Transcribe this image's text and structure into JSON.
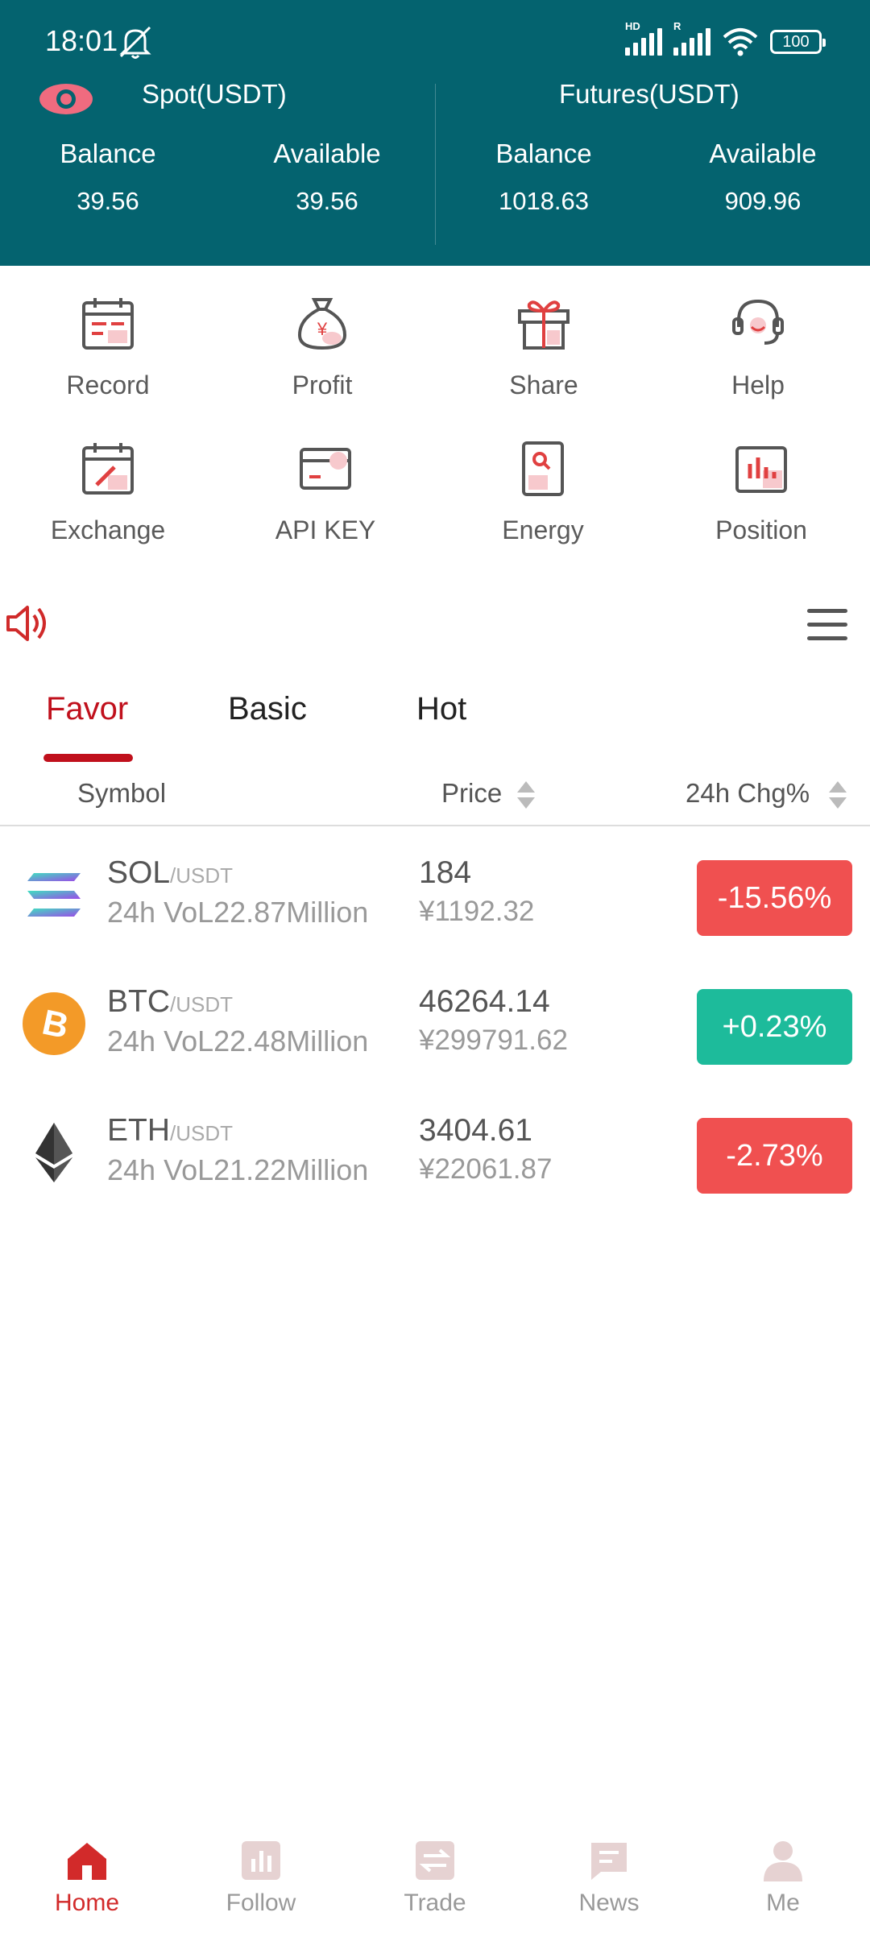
{
  "status_bar": {
    "time": "18:01",
    "hd_tag": "HD",
    "r_tag": "R",
    "battery": "100"
  },
  "accounts": {
    "spot": {
      "title": "Spot(USDT)",
      "balance_label": "Balance",
      "balance": "39.56",
      "available_label": "Available",
      "available": "39.56"
    },
    "futures": {
      "title": "Futures(USDT)",
      "balance_label": "Balance",
      "balance": "1018.63",
      "available_label": "Available",
      "available": "909.96"
    }
  },
  "menu": [
    {
      "label": "Record",
      "icon": "calendar-record-icon"
    },
    {
      "label": "Profit",
      "icon": "money-bag-icon"
    },
    {
      "label": "Share",
      "icon": "gift-icon"
    },
    {
      "label": "Help",
      "icon": "headset-icon"
    },
    {
      "label": "Exchange",
      "icon": "calendar-edit-icon"
    },
    {
      "label": "API KEY",
      "icon": "card-icon"
    },
    {
      "label": "Energy",
      "icon": "search-doc-icon"
    },
    {
      "label": "Position",
      "icon": "bar-chart-icon"
    }
  ],
  "tabs": [
    {
      "label": "Favor",
      "active": true
    },
    {
      "label": "Basic",
      "active": false
    },
    {
      "label": "Hot",
      "active": false
    }
  ],
  "columns": {
    "symbol": "Symbol",
    "price": "Price",
    "change": "24h Chg%"
  },
  "coins": [
    {
      "symbol": "SOL",
      "pair": "/USDT",
      "volume": "24h VoL22.87Million",
      "price": "184",
      "cny": "¥1192.32",
      "change": "-15.56%",
      "trend": "down"
    },
    {
      "symbol": "BTC",
      "pair": "/USDT",
      "volume": "24h VoL22.48Million",
      "price": "46264.14",
      "cny": "¥299791.62",
      "change": "+0.23%",
      "trend": "up"
    },
    {
      "symbol": "ETH",
      "pair": "/USDT",
      "volume": "24h VoL21.22Million",
      "price": "3404.61",
      "cny": "¥22061.87",
      "change": "-2.73%",
      "trend": "down"
    }
  ],
  "colors": {
    "header_bg": "#04636f",
    "accent_red": "#c0101c",
    "down": "#f05050",
    "up": "#1dbb9b"
  },
  "bottom_nav": [
    {
      "label": "Home",
      "icon": "home-icon",
      "active": true
    },
    {
      "label": "Follow",
      "icon": "follow-chart-icon",
      "active": false
    },
    {
      "label": "Trade",
      "icon": "trade-arrows-icon",
      "active": false
    },
    {
      "label": "News",
      "icon": "news-message-icon",
      "active": false
    },
    {
      "label": "Me",
      "icon": "person-icon",
      "active": false
    }
  ]
}
